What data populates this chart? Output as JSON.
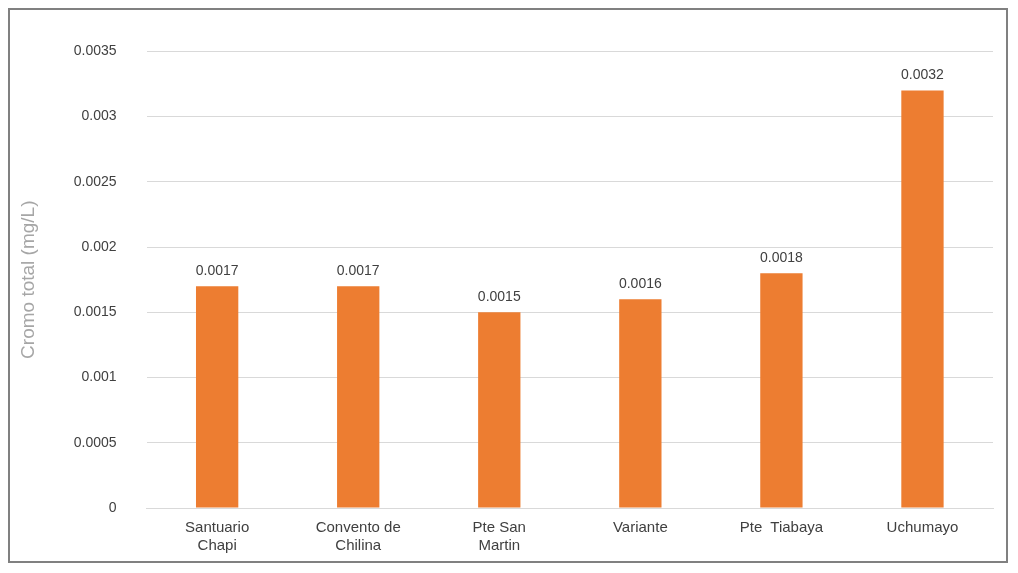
{
  "chart_data": {
    "type": "bar",
    "ylabel": "Cromo total (mg/L)",
    "categories": [
      "Santuario Chapi",
      "Convento de Chilina",
      "Pte San Martin",
      "Variante",
      "Pte  Tiabaya",
      "Uchumayo"
    ],
    "values": [
      0.0017,
      0.0017,
      0.0015,
      0.0016,
      0.0018,
      0.0032
    ],
    "color": "#ed7d31",
    "ylim": [
      0,
      0.0035
    ],
    "yticks": [
      0,
      0.0005,
      0.001,
      0.0015,
      0.002,
      0.0025,
      0.003,
      0.0035
    ],
    "grid": "y",
    "data_labels": true,
    "legend": false
  }
}
